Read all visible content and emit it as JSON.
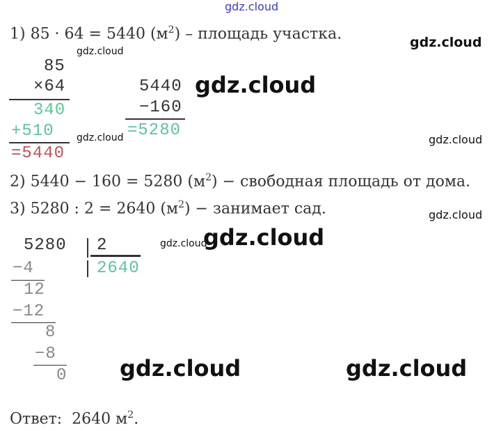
{
  "watermark": "gdz.cloud",
  "steps": [
    {
      "text": "1) 85 · 64 = 5440 (м",
      "sup": "2",
      "rest": ") – площадь участка."
    },
    {
      "text": "2) 5440 − 160 = 5280 (м",
      "sup": "2",
      "rest": ") − свободная площадь от дома."
    },
    {
      "text": "3) 5280 : 2 = 2640 (м",
      "sup": "2",
      "rest": ") − занимает сад."
    }
  ],
  "multiplication": {
    "a": "85",
    "b": "×64",
    "p1": "340",
    "p2": "+510",
    "result": "=5440"
  },
  "subtraction": {
    "a": "5440",
    "b": "−160",
    "result": "=5280"
  },
  "division": {
    "dividend": "5280",
    "divisor": "2",
    "quotient": "2640",
    "s1": "−4",
    "r1": "12",
    "s2": "−12",
    "r2": "8",
    "s3": "−8",
    "r3": "0"
  },
  "answer": {
    "text": "Ответ:  2640 м",
    "sup": "2",
    "rest": "."
  },
  "colors": {
    "green": "#5cc49a",
    "red": "#c0505a",
    "watermark_top": "#3a3acc"
  }
}
